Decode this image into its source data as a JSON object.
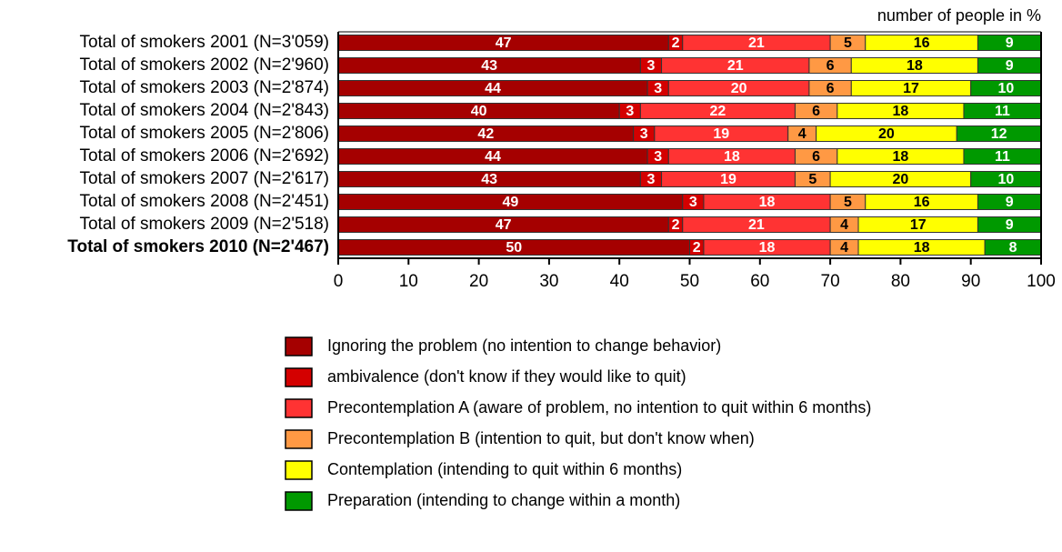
{
  "chart_data": {
    "type": "stacked_bar",
    "orientation": "horizontal",
    "x_label": "number of people in %",
    "categories": [
      "Total of smokers 2001 (N=3'059)",
      "Total of smokers 2002 (N=2'960)",
      "Total of smokers 2003 (N=2'874)",
      "Total of smokers 2004 (N=2'843)",
      "Total of smokers 2005 (N=2'806)",
      "Total of smokers 2006 (N=2'692)",
      "Total of smokers 2007 (N=2'617)",
      "Total of smokers 2008 (N=2'451)",
      "Total of smokers 2009 (N=2'518)",
      "Total of smokers 2010 (N=2'467)"
    ],
    "series": [
      {
        "name": "Ignoring the problem (no intention to change behavior)",
        "color": "#a50000",
        "label_color": "#ffffff",
        "values": [
          47,
          43,
          44,
          40,
          42,
          44,
          43,
          49,
          47,
          50
        ]
      },
      {
        "name": "ambivalence (don't know if they would like to quit)",
        "color": "#d40000",
        "label_color": "#ffffff",
        "values": [
          2,
          3,
          3,
          3,
          3,
          3,
          3,
          3,
          2,
          2
        ]
      },
      {
        "name": "Precontemplation A (aware of problem, no intention to quit within 6 months)",
        "color": "#ff3333",
        "label_color": "#ffffff",
        "values": [
          21,
          21,
          20,
          22,
          19,
          18,
          19,
          18,
          21,
          18
        ]
      },
      {
        "name": "Precontemplation B (intention to quit, but don't know when)",
        "color": "#ff9944",
        "label_color": "#000000",
        "values": [
          5,
          6,
          6,
          6,
          4,
          6,
          5,
          5,
          4,
          4
        ]
      },
      {
        "name": "Contemplation (intending to quit within 6 months)",
        "color": "#ffff00",
        "label_color": "#000000",
        "values": [
          16,
          18,
          17,
          18,
          20,
          18,
          20,
          16,
          17,
          18
        ]
      },
      {
        "name": "Preparation (intending to change within a month)",
        "color": "#009900",
        "label_color": "#ffffff",
        "values": [
          9,
          9,
          10,
          11,
          12,
          11,
          10,
          9,
          9,
          8
        ]
      }
    ],
    "xlim": [
      0,
      100
    ],
    "xticks": [
      0,
      10,
      20,
      30,
      40,
      50,
      60,
      70,
      80,
      90,
      100
    ],
    "legend": "bottom"
  }
}
